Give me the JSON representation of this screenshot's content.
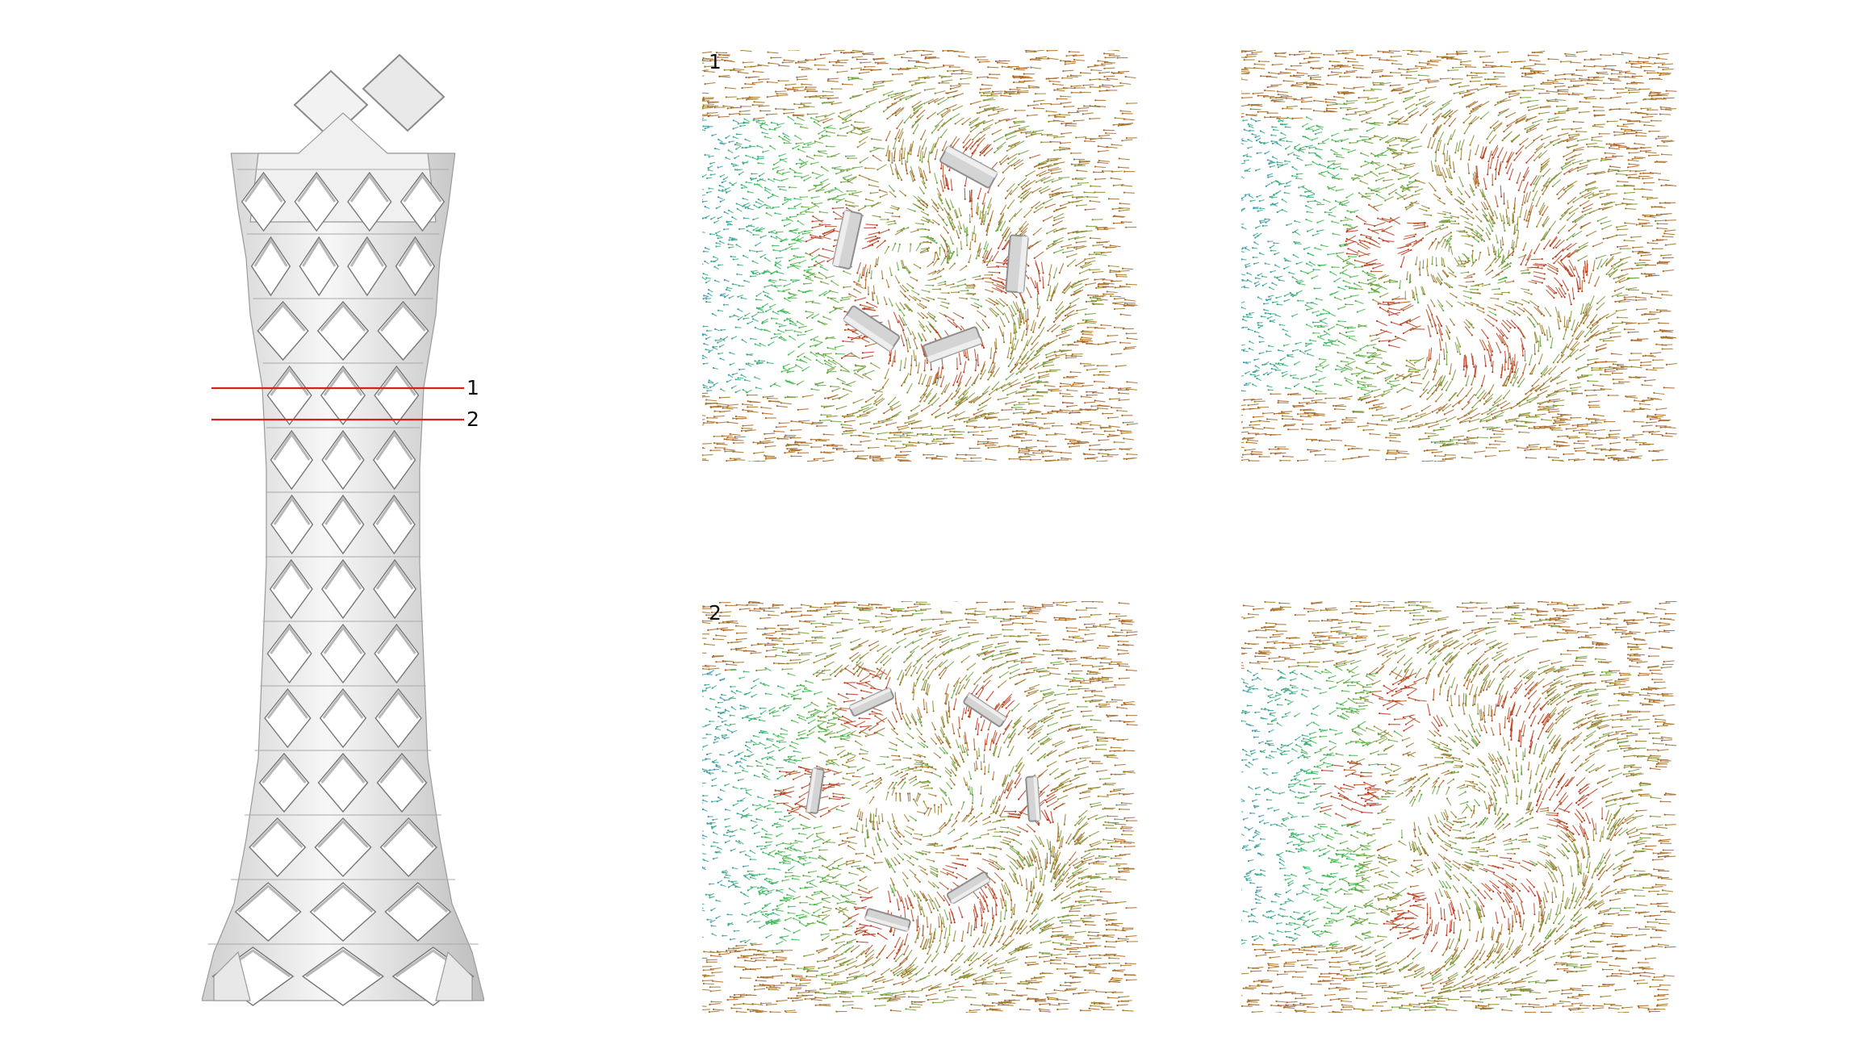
{
  "figure": {
    "section_markers": [
      {
        "label": "1"
      },
      {
        "label": "2"
      }
    ],
    "panels": [
      {
        "row_label": "1",
        "with_structure": true,
        "slice": 1
      },
      {
        "row_label": "",
        "with_structure": false,
        "slice": 1
      },
      {
        "row_label": "2",
        "with_structure": true,
        "slice": 2
      },
      {
        "row_label": "",
        "with_structure": false,
        "slice": 2
      }
    ],
    "colors": {
      "cut_line": "#d42020",
      "structure_light": "#f4f4f4",
      "structure_mid": "#d4d4d4",
      "structure_dark": "#8e8e8e",
      "flow_low": "#3a8fd0",
      "flow_mid": "#3fbf4a",
      "flow_high": "#a0802a",
      "flow_peak": "#c0301e"
    }
  }
}
